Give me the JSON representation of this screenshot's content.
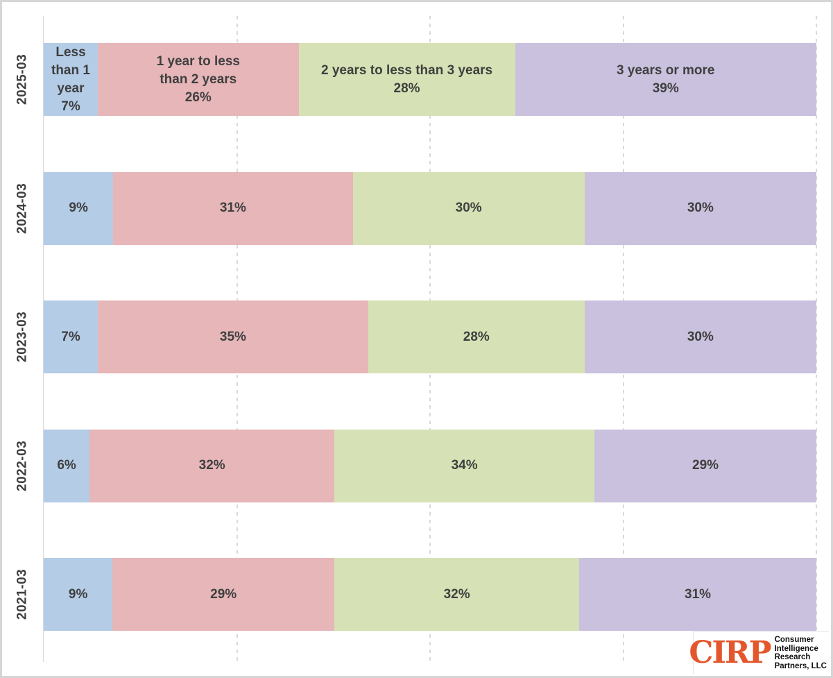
{
  "chart_data": {
    "type": "bar",
    "subtype": "horizontal-stacked-100pct",
    "title": "",
    "categories": [
      "2025-03",
      "2024-03",
      "2023-03",
      "2022-03",
      "2021-03"
    ],
    "series": [
      {
        "name": "Less than 1 year",
        "color": "#b4cce6",
        "values": [
          7,
          9,
          7,
          6,
          9
        ]
      },
      {
        "name": "1 year to less than 2 years",
        "color": "#e6b6b9",
        "values": [
          26,
          31,
          35,
          32,
          29
        ]
      },
      {
        "name": "2 years to less than 3 years",
        "color": "#d6e2b5",
        "values": [
          28,
          30,
          28,
          34,
          32
        ]
      },
      {
        "name": "3 years or more",
        "color": "#c9c1dd",
        "values": [
          39,
          30,
          30,
          29,
          31
        ]
      }
    ],
    "value_suffix": "%",
    "xlim": [
      0,
      100
    ],
    "gridlines_pct": [
      25,
      50,
      75,
      100
    ],
    "gridline_style": "dashed",
    "legend": "none",
    "label_style": "first-row-shows-series-names-then-percent-only"
  },
  "style": {
    "text_color": "#3f3f3f",
    "grid_color": "#d9d9d9",
    "border_color": "#d6d6d6",
    "logo_orange": "#e4562c"
  },
  "logo": {
    "brand": "CIRP",
    "lines": [
      "Consumer",
      "Intelligence",
      "Research",
      "Partners, LLC"
    ]
  }
}
